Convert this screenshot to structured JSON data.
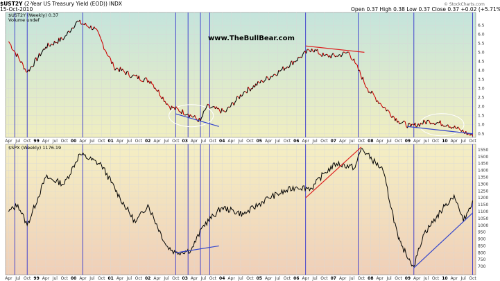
{
  "header": {
    "symbol": "$UST2Y",
    "description": "(2-Year US Treasury Yield (EOD))",
    "exchange": "INDX",
    "date": "15-Oct-2010",
    "open_label": "Open",
    "open": "0.37",
    "high_label": "High",
    "high": "0.38",
    "low_label": "Low",
    "low": "0.37",
    "close_label": "Close",
    "close": "0.37",
    "change": "+0.02 (+5.71%)",
    "copyright": "© StockCharts.com"
  },
  "watermark": "www.TheBullBear.com",
  "chart_data": [
    {
      "type": "line",
      "panel_label": "$UST2Y (Weekly) 0.37",
      "volume_label": "Volume undef",
      "yticks": [
        0.5,
        1.0,
        1.5,
        2.0,
        2.5,
        3.0,
        3.5,
        4.0,
        4.5,
        5.0,
        5.5,
        6.0,
        6.5
      ],
      "ylim": [
        0.3,
        7.2
      ],
      "x": [
        "1998-04",
        "1998-10",
        "1999-04",
        "1999-10",
        "2000-02",
        "2000-08",
        "2001-02",
        "2001-08",
        "2002-02",
        "2002-08",
        "2003-02",
        "2003-06",
        "2003-08",
        "2004-02",
        "2004-08",
        "2005-02",
        "2005-08",
        "2006-02",
        "2006-06",
        "2006-10",
        "2007-02",
        "2007-06",
        "2007-08",
        "2007-12",
        "2008-04",
        "2008-10",
        "2009-02",
        "2009-08",
        "2010-02",
        "2010-06",
        "2010-10"
      ],
      "values": [
        5.6,
        3.9,
        5.3,
        5.8,
        6.7,
        6.3,
        4.2,
        3.7,
        3.4,
        2.0,
        1.6,
        1.2,
        2.0,
        1.7,
        2.8,
        3.4,
        4.0,
        4.7,
        5.2,
        4.8,
        4.8,
        5.0,
        4.4,
        3.0,
        2.2,
        1.2,
        0.9,
        1.2,
        1.0,
        0.7,
        0.37
      ],
      "trendlines": [
        {
          "from": [
            "2002-10",
            1.6
          ],
          "to": [
            "2003-12",
            0.9
          ],
          "color": "#3344cc"
        },
        {
          "from": [
            "2006-04",
            5.35
          ],
          "to": [
            "2007-11",
            5.0
          ],
          "color": "#dd2222"
        },
        {
          "from": [
            "2009-01",
            0.9
          ],
          "to": [
            "2010-10",
            0.5
          ],
          "color": "#3344cc"
        }
      ],
      "ellipses": [
        {
          "center": [
            "2003-03",
            1.5
          ],
          "color": "#ffffff"
        },
        {
          "center": [
            "2009-12",
            1.0
          ],
          "color": "#ffffff"
        }
      ]
    },
    {
      "type": "line",
      "panel_label": "$SPX (Weekly) 1176.19",
      "yticks": [
        700,
        750,
        800,
        850,
        900,
        950,
        1000,
        1050,
        1100,
        1150,
        1200,
        1250,
        1300,
        1350,
        1400,
        1450,
        1500,
        1550
      ],
      "ylim": [
        640,
        1590
      ],
      "x": [
        "1998-04",
        "1998-07",
        "1998-10",
        "1999-04",
        "1999-10",
        "2000-03",
        "2000-10",
        "2001-04",
        "2001-09",
        "2002-01",
        "2002-07",
        "2002-10",
        "2003-03",
        "2003-07",
        "2004-01",
        "2004-08",
        "2005-04",
        "2006-01",
        "2006-06",
        "2006-10",
        "2007-02",
        "2007-08",
        "2007-10",
        "2008-05",
        "2008-10",
        "2008-11",
        "2009-03",
        "2009-06",
        "2010-01",
        "2010-04",
        "2010-07",
        "2010-10"
      ],
      "values": [
        1100,
        1150,
        1000,
        1350,
        1300,
        1520,
        1440,
        1200,
        1020,
        1150,
        850,
        800,
        820,
        1000,
        1130,
        1080,
        1200,
        1280,
        1270,
        1380,
        1450,
        1420,
        1560,
        1400,
        900,
        850,
        700,
        930,
        1140,
        1220,
        1030,
        1180
      ],
      "trendlines": [
        {
          "from": [
            "2002-10",
            800
          ],
          "to": [
            "2003-12",
            850
          ],
          "color": "#3344cc"
        },
        {
          "from": [
            "2006-04",
            1200
          ],
          "to": [
            "2007-10",
            1570
          ],
          "color": "#dd2222"
        },
        {
          "from": [
            "2009-03",
            690
          ],
          "to": [
            "2010-10",
            1090
          ],
          "color": "#3344cc"
        }
      ]
    }
  ],
  "x_axis": {
    "ticks": [
      {
        "t": "1998-04",
        "label": "Apr"
      },
      {
        "t": "1998-07",
        "label": "Jul"
      },
      {
        "t": "1998-10",
        "label": "Oct"
      },
      {
        "t": "1999-01",
        "label": "99",
        "year": true
      },
      {
        "t": "1999-04",
        "label": "Apr"
      },
      {
        "t": "1999-07",
        "label": "Jul"
      },
      {
        "t": "1999-10",
        "label": "Oct"
      },
      {
        "t": "2000-01",
        "label": "00",
        "year": true
      },
      {
        "t": "2000-04",
        "label": "Apr"
      },
      {
        "t": "2000-07",
        "label": "Jul"
      },
      {
        "t": "2000-10",
        "label": "Oct"
      },
      {
        "t": "2001-01",
        "label": "01",
        "year": true
      },
      {
        "t": "2001-04",
        "label": "Apr"
      },
      {
        "t": "2001-07",
        "label": "Jul"
      },
      {
        "t": "2001-10",
        "label": "Oct"
      },
      {
        "t": "2002-01",
        "label": "02",
        "year": true
      },
      {
        "t": "2002-04",
        "label": "Apr"
      },
      {
        "t": "2002-07",
        "label": "Jul"
      },
      {
        "t": "2002-10",
        "label": "Oct"
      },
      {
        "t": "2003-01",
        "label": "03",
        "year": true
      },
      {
        "t": "2003-04",
        "label": "Apr"
      },
      {
        "t": "2003-07",
        "label": "Jul"
      },
      {
        "t": "2003-10",
        "label": "Oct"
      },
      {
        "t": "2004-01",
        "label": "04",
        "year": true
      },
      {
        "t": "2004-04",
        "label": "Apr"
      },
      {
        "t": "2004-07",
        "label": "Jul"
      },
      {
        "t": "2004-10",
        "label": "Oct"
      },
      {
        "t": "2005-01",
        "label": "05",
        "year": true
      },
      {
        "t": "2005-04",
        "label": "Apr"
      },
      {
        "t": "2005-07",
        "label": "Jul"
      },
      {
        "t": "2005-10",
        "label": "Oct"
      },
      {
        "t": "2006-01",
        "label": "06",
        "year": true
      },
      {
        "t": "2006-04",
        "label": "Apr"
      },
      {
        "t": "2006-07",
        "label": "Jul"
      },
      {
        "t": "2006-10",
        "label": "Oct"
      },
      {
        "t": "2007-01",
        "label": "07",
        "year": true
      },
      {
        "t": "2007-04",
        "label": "Apr"
      },
      {
        "t": "2007-07",
        "label": "Jul"
      },
      {
        "t": "2007-10",
        "label": "Oct"
      },
      {
        "t": "2008-01",
        "label": "08",
        "year": true
      },
      {
        "t": "2008-04",
        "label": "Apr"
      },
      {
        "t": "2008-07",
        "label": "Jul"
      },
      {
        "t": "2008-10",
        "label": "Oct"
      },
      {
        "t": "2009-01",
        "label": "09",
        "year": true
      },
      {
        "t": "2009-04",
        "label": "Apr"
      },
      {
        "t": "2009-07",
        "label": "Jul"
      },
      {
        "t": "2009-10",
        "label": "Oct"
      },
      {
        "t": "2010-01",
        "label": "10",
        "year": true
      },
      {
        "t": "2010-04",
        "label": "Apr"
      },
      {
        "t": "2010-07",
        "label": "Jul"
      },
      {
        "t": "2010-10",
        "label": "Oct"
      }
    ],
    "start": "1998-03",
    "end": "2010-11"
  },
  "vertical_markers": [
    "1998-06",
    "1998-10",
    "2000-04",
    "2002-10",
    "2003-02",
    "2003-06",
    "2003-09",
    "2006-04",
    "2007-09",
    "2009-03",
    "2010-10"
  ],
  "colors": {
    "top_gradient_top": "#c4e4dc",
    "top_gradient_bottom": "#f0eec0",
    "bottom_gradient_top": "#f4efc4",
    "bottom_gradient_bottom": "#f0cfb8",
    "treasury_line": "#000000",
    "treasury_down": "#cc0000",
    "spx_line": "#000000",
    "marker": "#3333cc"
  }
}
